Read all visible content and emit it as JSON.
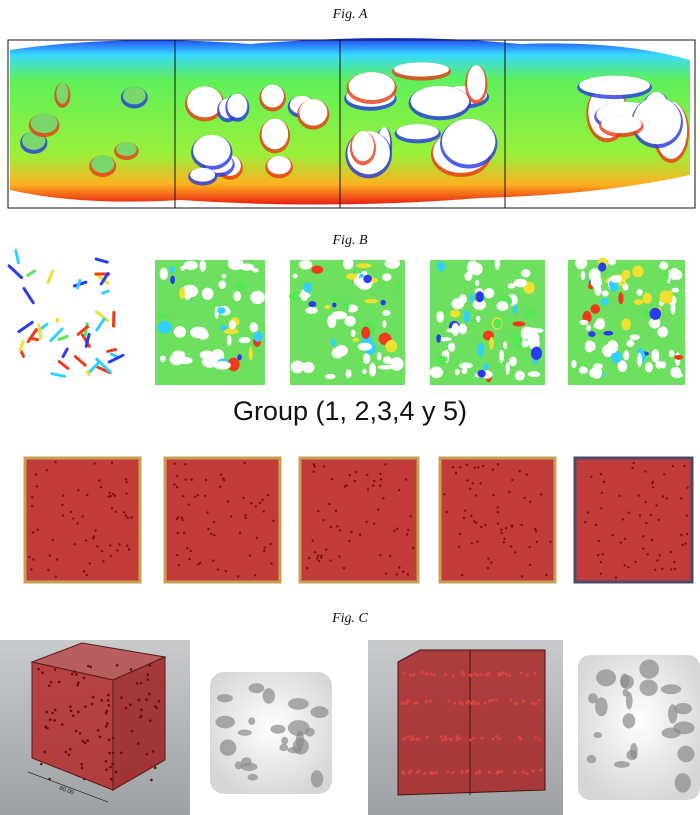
{
  "figures": {
    "a": {
      "caption": "Fig. A"
    },
    "b": {
      "caption": "Fig. B",
      "group_label": "Group (1, 2,3,4 y 5)"
    },
    "c": {
      "caption": "Fig. C",
      "dimension_label": "80.00"
    }
  }
}
